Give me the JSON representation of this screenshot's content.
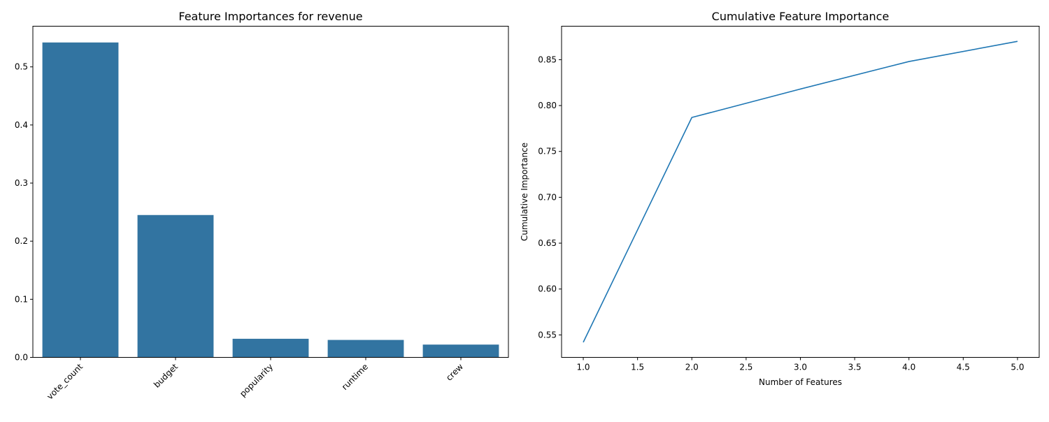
{
  "chart_data": [
    {
      "type": "bar",
      "title": "Feature Importances for revenue",
      "xlabel": "",
      "ylabel": "",
      "categories": [
        "vote_count",
        "budget",
        "popularity",
        "runtime",
        "crew"
      ],
      "values": [
        0.542,
        0.245,
        0.032,
        0.03,
        0.022
      ],
      "ylim": [
        0,
        0.57
      ],
      "yticks": [
        0.0,
        0.1,
        0.2,
        0.3,
        0.4,
        0.5
      ],
      "ytick_labels": [
        "0.0",
        "0.1",
        "0.2",
        "0.3",
        "0.4",
        "0.5"
      ],
      "xtick_rotation": 45,
      "grid": false,
      "bar_color": "#3274a1"
    },
    {
      "type": "line",
      "title": "Cumulative Feature Importance",
      "xlabel": "Number of Features",
      "ylabel": "Cumulative Importance",
      "x": [
        1,
        2,
        3,
        4,
        5
      ],
      "y": [
        0.542,
        0.787,
        0.818,
        0.848,
        0.87
      ],
      "xlim": [
        0.8,
        5.2
      ],
      "ylim": [
        0.5255,
        0.8865
      ],
      "xticks": [
        1.0,
        1.5,
        2.0,
        2.5,
        3.0,
        3.5,
        4.0,
        4.5,
        5.0
      ],
      "xtick_labels": [
        "1.0",
        "1.5",
        "2.0",
        "2.5",
        "3.0",
        "3.5",
        "4.0",
        "4.5",
        "5.0"
      ],
      "yticks": [
        0.55,
        0.6,
        0.65,
        0.7,
        0.75,
        0.8,
        0.85
      ],
      "ytick_labels": [
        "0.55",
        "0.60",
        "0.65",
        "0.70",
        "0.75",
        "0.80",
        "0.85"
      ],
      "grid": false,
      "line_color": "#1f77b4"
    }
  ]
}
